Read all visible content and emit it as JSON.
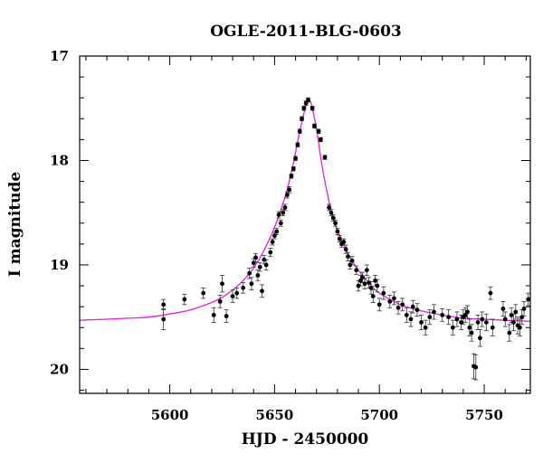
{
  "chart_data": {
    "type": "scatter",
    "title": "OGLE-2011-BLG-0603",
    "xlabel": "HJD - 2450000",
    "ylabel": "I magnitude",
    "xlim": [
      5557,
      5772
    ],
    "ylim": [
      17,
      20.23
    ],
    "y_inverted": true,
    "x_major_ticks": [
      5600,
      5650,
      5700,
      5750
    ],
    "x_minor_step": 10,
    "y_major_ticks": [
      17,
      18,
      19,
      20
    ],
    "y_minor_step": 0.2,
    "grid": false,
    "colors": {
      "points": "#000000",
      "model": "#e020e0",
      "frame": "#000000"
    },
    "series": [
      {
        "kind": "observations",
        "points": [
          [
            5597,
            19.38,
            0.05
          ],
          [
            5597,
            19.52,
            0.1
          ],
          [
            5607,
            19.33,
            0.05
          ],
          [
            5616,
            19.27,
            0.05
          ],
          [
            5621,
            19.48,
            0.07
          ],
          [
            5624,
            19.35,
            0.06
          ],
          [
            5625,
            19.18,
            0.08
          ],
          [
            5627,
            19.49,
            0.06
          ],
          [
            5630,
            19.3,
            0.06
          ],
          [
            5632,
            19.27,
            0.05
          ],
          [
            5635,
            19.22,
            0.05
          ],
          [
            5638,
            19.08,
            0.05
          ],
          [
            5639,
            19.18,
            0.06
          ],
          [
            5640,
            18.98,
            0.04
          ],
          [
            5641,
            18.93,
            0.04
          ],
          [
            5642,
            19.1,
            0.05
          ],
          [
            5643,
            19.02,
            0.04
          ],
          [
            5644,
            19.25,
            0.06
          ],
          [
            5645,
            18.95,
            0.04
          ],
          [
            5646,
            19.0,
            0.05
          ],
          [
            5648,
            18.88,
            0.04
          ],
          [
            5649,
            18.78,
            0.03
          ],
          [
            5650,
            18.72,
            0.03
          ],
          [
            5651,
            18.68,
            0.03
          ],
          [
            5652,
            18.52,
            0.03
          ],
          [
            5653,
            18.6,
            0.03
          ],
          [
            5654,
            18.5,
            0.03
          ],
          [
            5655,
            18.45,
            0.03
          ],
          [
            5656,
            18.33,
            0.03
          ],
          [
            5657,
            18.28,
            0.03
          ],
          [
            5658,
            18.15,
            0.02
          ],
          [
            5659,
            18.08,
            0.02
          ],
          [
            5660,
            17.98,
            0.02
          ],
          [
            5661,
            17.85,
            0.02
          ],
          [
            5662,
            17.72,
            0.02
          ],
          [
            5663,
            17.6,
            0.02
          ],
          [
            5664,
            17.5,
            0.02
          ],
          [
            5665,
            17.45,
            0.02
          ],
          [
            5666,
            17.42,
            0.02
          ],
          [
            5668,
            17.5,
            0.02
          ],
          [
            5669,
            17.67,
            0.02
          ],
          [
            5671,
            17.72,
            0.02
          ],
          [
            5672,
            17.8,
            0.02
          ],
          [
            5674,
            17.97,
            0.02
          ],
          [
            5676,
            18.45,
            0.03
          ],
          [
            5677,
            18.5,
            0.03
          ],
          [
            5678,
            18.55,
            0.03
          ],
          [
            5679,
            18.6,
            0.03
          ],
          [
            5680,
            18.68,
            0.03
          ],
          [
            5681,
            18.75,
            0.03
          ],
          [
            5682,
            18.8,
            0.03
          ],
          [
            5683,
            18.78,
            0.03
          ],
          [
            5684,
            18.85,
            0.04
          ],
          [
            5685,
            18.92,
            0.04
          ],
          [
            5686,
            19.0,
            0.04
          ],
          [
            5687,
            18.96,
            0.04
          ],
          [
            5689,
            19.05,
            0.04
          ],
          [
            5690,
            19.2,
            0.05
          ],
          [
            5691,
            19.15,
            0.05
          ],
          [
            5692,
            19.12,
            0.05
          ],
          [
            5693,
            19.18,
            0.05
          ],
          [
            5694,
            19.05,
            0.05
          ],
          [
            5695,
            19.17,
            0.05
          ],
          [
            5696,
            19.22,
            0.06
          ],
          [
            5697,
            19.3,
            0.06
          ],
          [
            5698,
            19.15,
            0.05
          ],
          [
            5699,
            19.2,
            0.06
          ],
          [
            5700,
            19.38,
            0.06
          ],
          [
            5702,
            19.27,
            0.06
          ],
          [
            5705,
            19.35,
            0.06
          ],
          [
            5707,
            19.32,
            0.06
          ],
          [
            5709,
            19.41,
            0.06
          ],
          [
            5711,
            19.38,
            0.06
          ],
          [
            5713,
            19.48,
            0.07
          ],
          [
            5715,
            19.52,
            0.07
          ],
          [
            5716,
            19.4,
            0.06
          ],
          [
            5718,
            19.43,
            0.06
          ],
          [
            5720,
            19.55,
            0.07
          ],
          [
            5722,
            19.6,
            0.07
          ],
          [
            5724,
            19.5,
            0.07
          ],
          [
            5726,
            19.45,
            0.07
          ],
          [
            5730,
            19.48,
            0.06
          ],
          [
            5733,
            19.5,
            0.07
          ],
          [
            5735,
            19.6,
            0.07
          ],
          [
            5737,
            19.52,
            0.07
          ],
          [
            5739,
            19.55,
            0.07
          ],
          [
            5740,
            19.5,
            0.07
          ],
          [
            5741,
            19.48,
            0.07
          ],
          [
            5742,
            19.45,
            0.06
          ],
          [
            5743,
            19.6,
            0.08
          ],
          [
            5744,
            19.65,
            0.08
          ],
          [
            5745,
            19.97,
            0.12
          ],
          [
            5746,
            19.98,
            0.12
          ],
          [
            5747,
            19.55,
            0.07
          ],
          [
            5748,
            19.7,
            0.08
          ],
          [
            5749,
            19.52,
            0.07
          ],
          [
            5751,
            19.55,
            0.08
          ],
          [
            5753,
            19.27,
            0.06
          ],
          [
            5754,
            19.6,
            0.08
          ],
          [
            5759,
            19.42,
            0.07
          ],
          [
            5760,
            19.52,
            0.07
          ],
          [
            5762,
            19.65,
            0.08
          ],
          [
            5763,
            19.48,
            0.07
          ],
          [
            5764,
            19.55,
            0.08
          ],
          [
            5765,
            19.45,
            0.07
          ],
          [
            5766,
            19.58,
            0.08
          ],
          [
            5767,
            19.6,
            0.08
          ],
          [
            5768,
            19.5,
            0.07
          ],
          [
            5769,
            19.42,
            0.07
          ],
          [
            5771,
            19.33,
            0.06
          ]
        ]
      },
      {
        "kind": "model",
        "points": [
          [
            5557,
            19.53
          ],
          [
            5570,
            19.52
          ],
          [
            5580,
            19.51
          ],
          [
            5590,
            19.5
          ],
          [
            5600,
            19.47
          ],
          [
            5610,
            19.43
          ],
          [
            5620,
            19.36
          ],
          [
            5625,
            19.31
          ],
          [
            5630,
            19.24
          ],
          [
            5635,
            19.15
          ],
          [
            5640,
            19.03
          ],
          [
            5645,
            18.86
          ],
          [
            5650,
            18.64
          ],
          [
            5653,
            18.47
          ],
          [
            5656,
            18.28
          ],
          [
            5659,
            18.02
          ],
          [
            5661,
            17.82
          ],
          [
            5663,
            17.63
          ],
          [
            5665,
            17.47
          ],
          [
            5666,
            17.42
          ],
          [
            5667,
            17.43
          ],
          [
            5668,
            17.5
          ],
          [
            5670,
            17.7
          ],
          [
            5672,
            17.97
          ],
          [
            5674,
            18.2
          ],
          [
            5677,
            18.48
          ],
          [
            5680,
            18.67
          ],
          [
            5685,
            18.89
          ],
          [
            5690,
            19.05
          ],
          [
            5695,
            19.17
          ],
          [
            5700,
            19.27
          ],
          [
            5710,
            19.38
          ],
          [
            5720,
            19.44
          ],
          [
            5730,
            19.48
          ],
          [
            5740,
            19.51
          ],
          [
            5750,
            19.52
          ],
          [
            5760,
            19.53
          ],
          [
            5772,
            19.54
          ]
        ]
      }
    ]
  }
}
